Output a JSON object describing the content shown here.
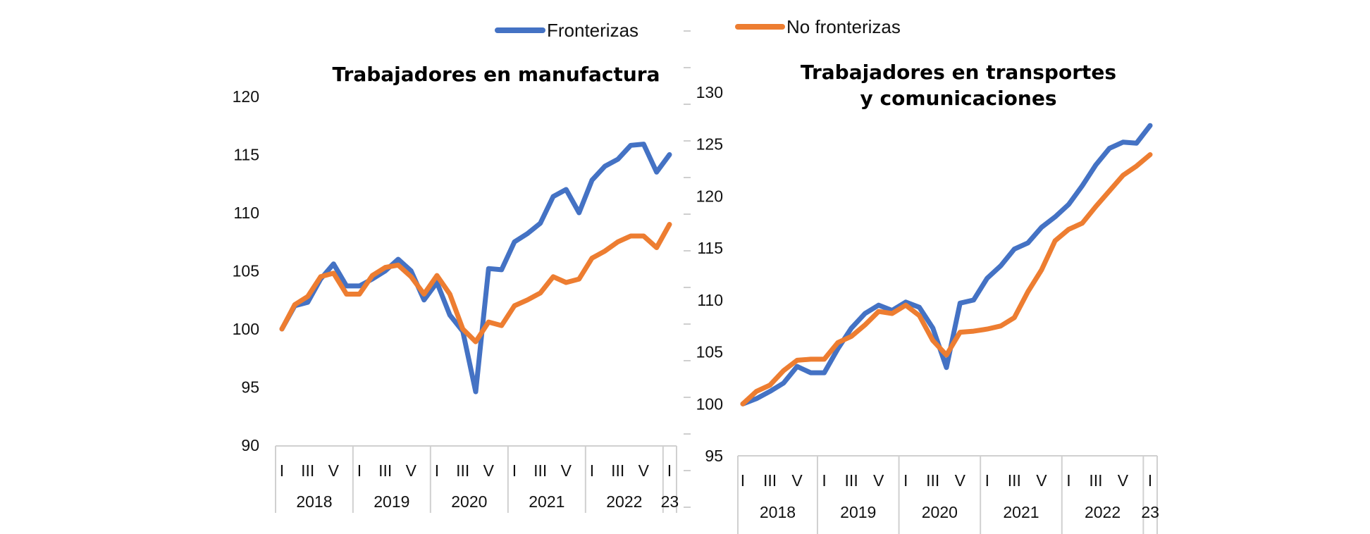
{
  "legend": {
    "items": [
      {
        "label": "Fronterizas",
        "color": "#4472C4"
      },
      {
        "label": "No fronterizas",
        "color": "#ED7D31"
      }
    ]
  },
  "chart_data": [
    {
      "type": "line",
      "title": "Trabajadores en manufactura",
      "title_lines": [
        "Trabajadores en manufactura"
      ],
      "xlabel": "",
      "ylabel": "",
      "ylim": [
        90,
        120
      ],
      "yticks": [
        90,
        95,
        100,
        105,
        110,
        115,
        120
      ],
      "grid": false,
      "legend_position": "top",
      "period_labels": [
        "I",
        "III",
        "V"
      ],
      "years": [
        "2018",
        "2019",
        "2020",
        "2021",
        "2022",
        "23"
      ],
      "x": [
        "2018-I",
        "2018-II",
        "2018-III",
        "2018-IV",
        "2018-V",
        "2018-VI",
        "2019-I",
        "2019-II",
        "2019-III",
        "2019-IV",
        "2019-V",
        "2019-VI",
        "2020-I",
        "2020-II",
        "2020-III",
        "2020-IV",
        "2020-V",
        "2020-VI",
        "2021-I",
        "2021-II",
        "2021-III",
        "2021-IV",
        "2021-V",
        "2021-VI",
        "2022-I",
        "2022-II",
        "2022-III",
        "2022-IV",
        "2022-V",
        "2022-VI",
        "2023-I"
      ],
      "series": [
        {
          "name": "Fronterizas",
          "color": "#4472C4",
          "values": [
            100,
            102,
            102.3,
            104.3,
            105.6,
            103.7,
            103.7,
            104.3,
            105,
            106,
            105,
            102.5,
            104,
            101.2,
            99.8,
            94.6,
            105.2,
            105.1,
            107.5,
            108.2,
            109.1,
            111.4,
            112,
            110,
            112.8,
            114,
            114.6,
            115.8,
            115.9,
            113.5,
            115
          ]
        },
        {
          "name": "No fronterizas",
          "color": "#ED7D31",
          "values": [
            100,
            102.1,
            102.8,
            104.5,
            104.8,
            103,
            103,
            104.6,
            105.3,
            105.5,
            104.5,
            103,
            104.6,
            103,
            100,
            98.9,
            100.6,
            100.3,
            102,
            102.5,
            103.1,
            104.5,
            104,
            104.3,
            106.1,
            106.7,
            107.5,
            108,
            108,
            107,
            109
          ]
        }
      ]
    },
    {
      "type": "line",
      "title": "Trabajadores en transportes y comunicaciones",
      "title_lines": [
        "Trabajadores en transportes",
        "y comunicaciones"
      ],
      "xlabel": "",
      "ylabel": "",
      "ylim": [
        95,
        130
      ],
      "yticks": [
        95,
        100,
        105,
        110,
        115,
        120,
        125,
        130
      ],
      "grid": false,
      "legend_position": "top",
      "period_labels": [
        "I",
        "III",
        "V"
      ],
      "years": [
        "2018",
        "2019",
        "2020",
        "2021",
        "2022",
        "23"
      ],
      "x": [
        "2018-I",
        "2018-II",
        "2018-III",
        "2018-IV",
        "2018-V",
        "2018-VI",
        "2019-I",
        "2019-II",
        "2019-III",
        "2019-IV",
        "2019-V",
        "2019-VI",
        "2020-I",
        "2020-II",
        "2020-III",
        "2020-IV",
        "2020-V",
        "2020-VI",
        "2021-I",
        "2021-II",
        "2021-III",
        "2021-IV",
        "2021-V",
        "2021-VI",
        "2022-I",
        "2022-II",
        "2022-III",
        "2022-IV",
        "2022-V",
        "2022-VI",
        "2023-I"
      ],
      "series": [
        {
          "name": "Fronterizas",
          "color": "#4472C4",
          "values": [
            100,
            100.5,
            101.2,
            102,
            103.6,
            103,
            103,
            105.3,
            107.3,
            108.7,
            109.5,
            109,
            109.8,
            109.3,
            107.3,
            103.5,
            109.7,
            110,
            112.1,
            113.3,
            114.9,
            115.5,
            117,
            118,
            119.2,
            121,
            123,
            124.6,
            125.2,
            125.1,
            126.8
          ]
        },
        {
          "name": "No fronterizas",
          "color": "#ED7D31",
          "values": [
            100,
            101.2,
            101.8,
            103.2,
            104.2,
            104.3,
            104.3,
            105.9,
            106.5,
            107.6,
            108.9,
            108.7,
            109.5,
            108.5,
            106.1,
            104.7,
            106.9,
            107,
            107.2,
            107.5,
            108.3,
            110.8,
            112.9,
            115.7,
            116.8,
            117.4,
            119,
            120.5,
            122,
            122.9,
            124
          ]
        }
      ]
    }
  ]
}
